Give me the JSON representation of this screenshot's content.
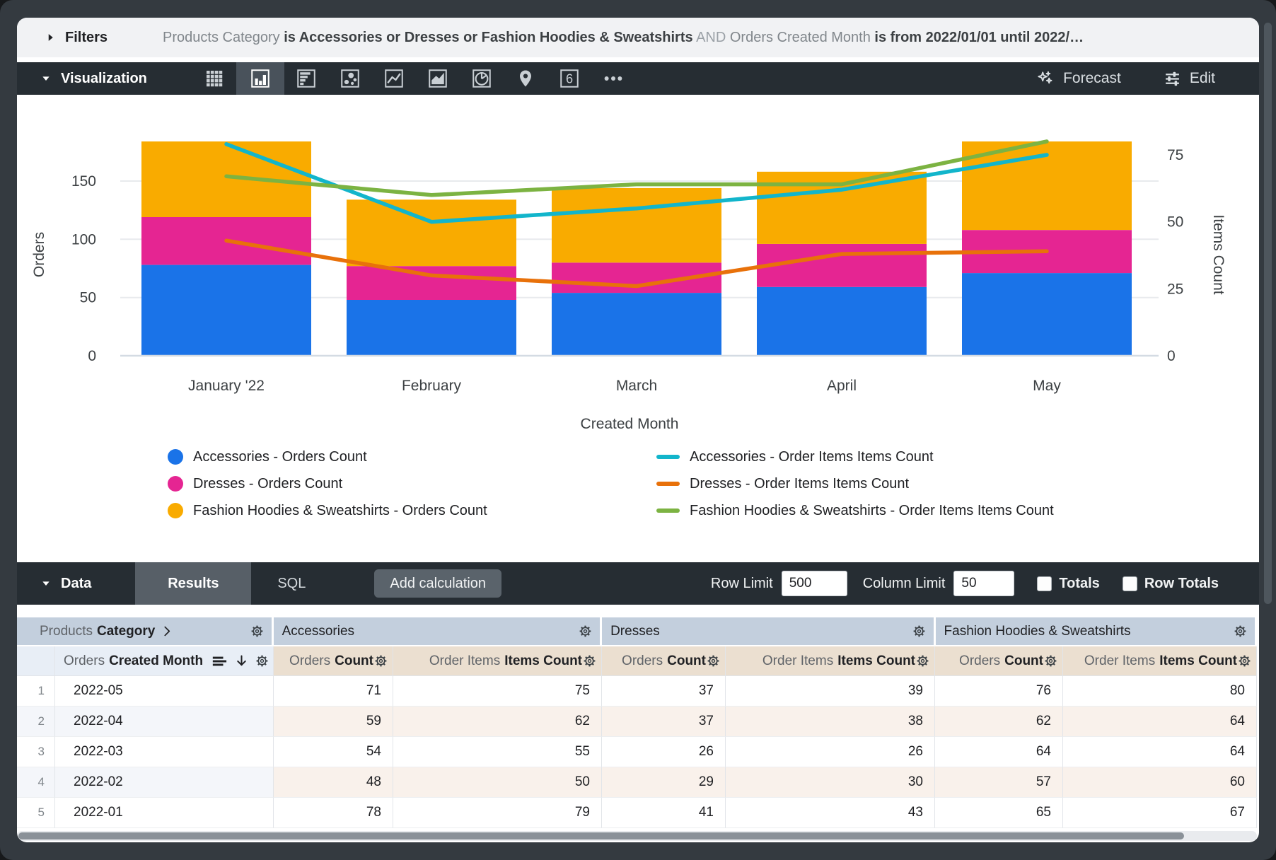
{
  "filters": {
    "label": "Filters",
    "segments": [
      {
        "text": "Products Category ",
        "style": "plain"
      },
      {
        "text": "is Accessories or Dresses or Fashion Hoodies & Sweatshirts",
        "style": "bold"
      },
      {
        "text": " AND ",
        "style": "muted"
      },
      {
        "text": "Orders Created Month ",
        "style": "plain"
      },
      {
        "text": "is from 2022/01/01 until 2022/…",
        "style": "bold"
      }
    ]
  },
  "viz": {
    "title": "Visualization",
    "icons": [
      "table",
      "column-chart",
      "bar-chart",
      "scatter-chart",
      "line-chart",
      "area-chart",
      "pie-chart",
      "map",
      "single-value",
      "more-options"
    ],
    "active_icon": "column-chart",
    "single_value_glyph": "6",
    "forecast_label": "Forecast",
    "edit_label": "Edit"
  },
  "chart_data": {
    "type": "bar",
    "subtype": "stacked-bars-with-lines",
    "categories": [
      "January '22",
      "February",
      "March",
      "April",
      "May"
    ],
    "bar_series": [
      {
        "name": "Accessories - Orders Count",
        "color": "#1A73E8",
        "values": [
          78,
          48,
          54,
          59,
          71
        ]
      },
      {
        "name": "Dresses - Orders Count",
        "color": "#E52592",
        "values": [
          41,
          29,
          26,
          37,
          37
        ]
      },
      {
        "name": "Fashion Hoodies & Sweatshirts - Orders Count",
        "color": "#F9AB00",
        "values": [
          65,
          57,
          64,
          62,
          76
        ]
      }
    ],
    "line_series": [
      {
        "name": "Accessories - Order Items Items Count",
        "color": "#12B5CB",
        "axis": "right",
        "values": [
          79,
          50,
          55,
          62,
          75
        ]
      },
      {
        "name": "Dresses - Order Items Items Count",
        "color": "#E8710A",
        "axis": "right",
        "values": [
          43,
          30,
          26,
          38,
          39
        ]
      },
      {
        "name": "Fashion Hoodies & Sweatshirts - Order Items Items Count",
        "color": "#7CB342",
        "axis": "right",
        "values": [
          67,
          60,
          64,
          64,
          80
        ]
      }
    ],
    "xlabel": "Created Month",
    "ylabel_left": "Orders",
    "ylabel_right": "Items Count",
    "left_ticks": [
      0,
      50,
      100,
      150
    ],
    "right_ticks": [
      0,
      25,
      50,
      75
    ],
    "left_axis_range": [
      0,
      190
    ],
    "right_axis_range": [
      0,
      82.5
    ],
    "grid": true,
    "legend_position": "bottom"
  },
  "legend": {
    "left": [
      {
        "label": "Accessories - Orders Count",
        "color": "#1A73E8",
        "marker": "dot"
      },
      {
        "label": "Dresses - Orders Count",
        "color": "#E52592",
        "marker": "dot"
      },
      {
        "label": "Fashion Hoodies & Sweatshirts - Orders Count",
        "color": "#F9AB00",
        "marker": "dot"
      }
    ],
    "right": [
      {
        "label": "Accessories - Order Items Items Count",
        "color": "#12B5CB",
        "marker": "dash"
      },
      {
        "label": "Dresses - Order Items Items Count",
        "color": "#E8710A",
        "marker": "dash"
      },
      {
        "label": "Fashion Hoodies & Sweatshirts - Order Items Items Count",
        "color": "#7CB342",
        "marker": "dash"
      }
    ]
  },
  "data_bar": {
    "title": "Data",
    "tabs": [
      "Results",
      "SQL"
    ],
    "active_tab": "Results",
    "add_calculation_label": "Add calculation",
    "row_limit_label": "Row Limit",
    "row_limit_value": "500",
    "column_limit_label": "Column Limit",
    "column_limit_value": "50",
    "totals_label": "Totals",
    "totals_checked": false,
    "row_totals_label": "Row Totals",
    "row_totals_checked": false
  },
  "table": {
    "pivot_header": {
      "view": "Products",
      "field": "Category"
    },
    "groups": [
      "Accessories",
      "Dresses",
      "Fashion Hoodies & Sweatshirts"
    ],
    "dimension_header": {
      "view": "Orders",
      "field": "Created Month"
    },
    "measure_headers": [
      {
        "view": "Orders",
        "field": "Count"
      },
      {
        "view": "Order Items",
        "field": "Items Count"
      }
    ],
    "rows": [
      {
        "n": "1",
        "month": "2022-05",
        "values": [
          71,
          75,
          37,
          39,
          76,
          80
        ]
      },
      {
        "n": "2",
        "month": "2022-04",
        "values": [
          59,
          62,
          37,
          38,
          62,
          64
        ]
      },
      {
        "n": "3",
        "month": "2022-03",
        "values": [
          54,
          55,
          26,
          26,
          64,
          64
        ]
      },
      {
        "n": "4",
        "month": "2022-02",
        "values": [
          48,
          50,
          29,
          30,
          57,
          60
        ]
      },
      {
        "n": "5",
        "month": "2022-01",
        "values": [
          78,
          79,
          41,
          43,
          65,
          67
        ]
      }
    ]
  },
  "colors": {
    "accent_dark": "#262D33",
    "selected_cell": "#49525B",
    "bar_blue": "#1A73E8",
    "bar_pink": "#E52592",
    "bar_amber": "#F9AB00",
    "line_cyan": "#12B5CB",
    "line_orange": "#E8710A",
    "line_green": "#7CB342"
  }
}
